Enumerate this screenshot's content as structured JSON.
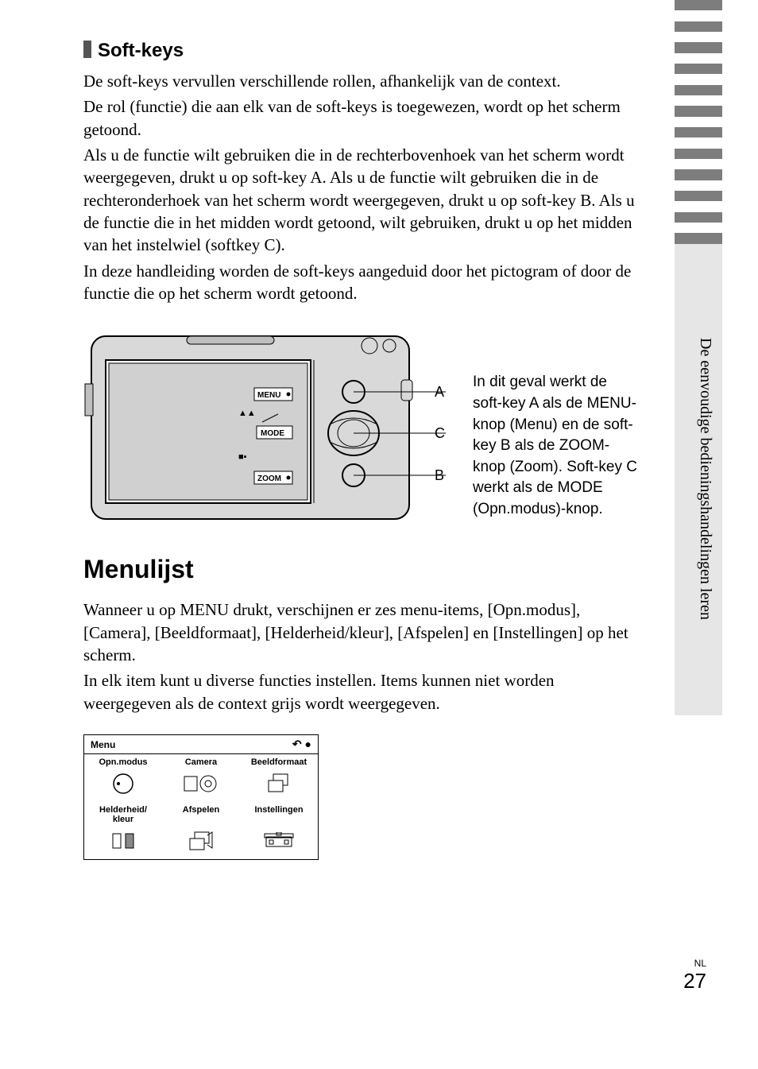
{
  "section1": {
    "heading": "Soft-keys",
    "p1": "De soft-keys vervullen verschillende rollen, afhankelijk van de context.",
    "p2": "De rol (functie) die aan elk van de soft-keys is toegewezen, wordt op het scherm getoond.",
    "p3": "Als u de functie wilt gebruiken die in de rechterbovenhoek van het scherm wordt weergegeven, drukt u op soft-key A. Als u de functie wilt gebruiken die in de rechteronderhoek van het scherm wordt weergegeven, drukt u op soft-key B. Als u de functie die in het midden wordt getoond, wilt gebruiken, drukt u op het midden van het instelwiel (softkey C).",
    "p4": "In deze handleiding worden de soft-keys aangeduid door het pictogram of door de functie die op het scherm wordt getoond."
  },
  "diagram": {
    "labelA": "A",
    "labelB": "B",
    "labelC": "C",
    "screen_label_top": "MENU",
    "screen_label_mid": "MODE",
    "screen_label_bottom": "ZOOM",
    "caption": "In dit geval werkt de soft-key A als de MENU-knop (Menu) en de soft-key B als de ZOOM-knop (Zoom). Soft-key C werkt als de MODE (Opn.modus)-knop."
  },
  "section2": {
    "heading": "Menulijst",
    "p1": "Wanneer u op MENU drukt, verschijnen er zes menu-items, [Opn.modus], [Camera], [Beeldformaat], [Helderheid/kleur], [Afspelen] en [Instellingen] op het scherm.",
    "p2": "In elk item kunt u diverse functies instellen. Items kunnen niet worden weergegeven als de context grijs wordt weergegeven."
  },
  "menu": {
    "title": "Menu",
    "items": [
      {
        "label": "Opn.modus"
      },
      {
        "label": "Camera"
      },
      {
        "label": "Beeldformaat"
      },
      {
        "label": "Helderheid/\nkleur"
      },
      {
        "label": "Afspelen"
      },
      {
        "label": "Instellingen"
      }
    ]
  },
  "sidetab": "De eenvoudige bedieningshandelingen leren",
  "stripes": {
    "colors": [
      "#7d7d7d",
      "#ffffff",
      "#7d7d7d",
      "#ffffff",
      "#7d7d7d",
      "#ffffff",
      "#7d7d7d",
      "#ffffff",
      "#7d7d7d",
      "#ffffff",
      "#7d7d7d",
      "#ffffff",
      "#7d7d7d",
      "#ffffff",
      "#7d7d7d",
      "#ffffff",
      "#7d7d7d",
      "#ffffff",
      "#7d7d7d",
      "#ffffff",
      "#7d7d7d",
      "#ffffff",
      "#7d7d7d",
      "#e6e6e6"
    ]
  },
  "footer": {
    "lang": "NL",
    "page": "27"
  }
}
